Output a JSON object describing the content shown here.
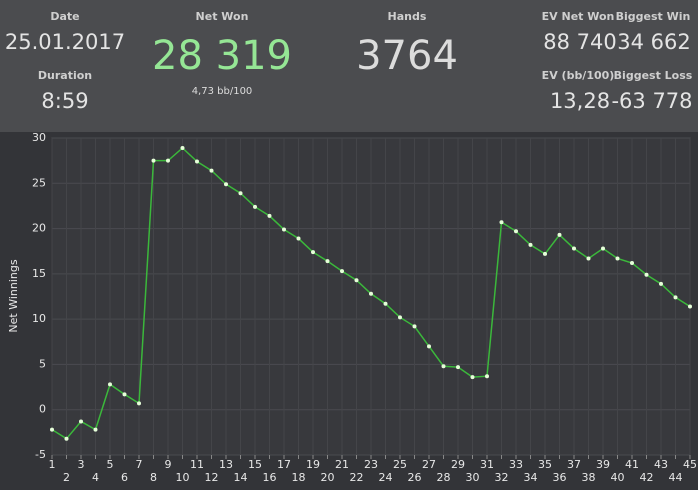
{
  "header": {
    "stats": [
      {
        "label": "Date",
        "value": "25.01.2017"
      },
      {
        "label": "Duration",
        "value": "8:59"
      },
      {
        "label": "Net Won",
        "value": "28 319",
        "sub": "4,73 bb/100"
      },
      {
        "label": "Hands",
        "value": "3764"
      },
      {
        "label": "EV Net Won",
        "value": "88 740"
      },
      {
        "label": "Biggest Win",
        "value": "34 662"
      },
      {
        "label": "EV (bb/100)",
        "value": "13,28"
      },
      {
        "label": "Biggest Loss",
        "value": "-63 778"
      }
    ]
  },
  "chart_data": {
    "type": "line",
    "ylabel": "Net Winnings",
    "x": [
      1,
      2,
      3,
      4,
      5,
      6,
      7,
      8,
      9,
      10,
      11,
      12,
      13,
      14,
      15,
      16,
      17,
      18,
      19,
      20,
      21,
      22,
      23,
      24,
      25,
      26,
      27,
      28,
      29,
      30,
      31,
      32,
      33,
      34,
      35,
      36,
      37,
      38,
      39,
      40,
      41,
      42,
      43,
      44,
      45
    ],
    "values": [
      -2.2,
      -3.2,
      -1.3,
      -2.2,
      2.8,
      1.7,
      0.7,
      27.5,
      27.5,
      28.9,
      27.4,
      26.4,
      24.9,
      23.9,
      22.4,
      21.4,
      19.9,
      18.9,
      17.4,
      16.4,
      15.3,
      14.3,
      12.8,
      11.7,
      10.2,
      9.2,
      7.0,
      4.8,
      4.7,
      3.6,
      3.7,
      20.7,
      19.7,
      18.2,
      17.2,
      19.3,
      17.8,
      16.7,
      17.8,
      16.7,
      16.2,
      14.9,
      13.9,
      12.4,
      11.4
    ],
    "color": "#3bb83b",
    "xlim": [
      1,
      45
    ],
    "xticks": [
      1,
      2,
      3,
      4,
      5,
      6,
      7,
      8,
      9,
      10,
      11,
      12,
      13,
      14,
      15,
      16,
      17,
      18,
      19,
      20,
      21,
      22,
      23,
      24,
      25,
      26,
      27,
      28,
      29,
      30,
      31,
      32,
      33,
      34,
      35,
      36,
      37,
      38,
      39,
      40,
      41,
      42,
      43,
      44,
      45
    ],
    "ylim": [
      -5,
      30
    ],
    "yticks": [
      -5,
      0,
      5,
      10,
      15,
      20,
      25,
      30
    ],
    "grid": true
  }
}
